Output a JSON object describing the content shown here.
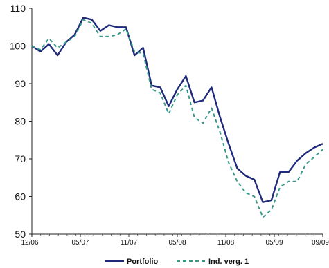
{
  "chart_data": {
    "type": "line",
    "x_tick_labels": [
      "12/06",
      "05/07",
      "11/07",
      "05/08",
      "11/08",
      "05/09",
      "09/09"
    ],
    "ylim": [
      50,
      110
    ],
    "y_ticks": [
      50,
      60,
      70,
      80,
      90,
      100,
      110
    ],
    "grid": false,
    "legend_position": "bottom",
    "series": [
      {
        "name": "Portfolio",
        "color": "#1f2a7a",
        "style": "solid",
        "values": [
          100,
          98.5,
          100.5,
          97.5,
          101,
          103,
          107.5,
          107,
          104,
          105.5,
          105,
          105,
          97.5,
          99.5,
          89.5,
          89,
          84,
          88.5,
          92,
          85,
          85.5,
          89,
          81,
          74,
          67.5,
          65.5,
          64.5,
          58.5,
          59,
          66.5,
          66.5,
          69.5,
          71.5,
          73,
          74
        ]
      },
      {
        "name": "Ind. verg. 1",
        "color": "#3a9a8a",
        "style": "dashed",
        "values": [
          100,
          99,
          102,
          99.5,
          101,
          102.5,
          107,
          106,
          102.5,
          102.5,
          103,
          104.5,
          98.5,
          98,
          88.5,
          87.5,
          82,
          87,
          89.5,
          81,
          79.5,
          83.5,
          77,
          69,
          64,
          61,
          60,
          54.5,
          56.5,
          62.5,
          64,
          64,
          68.5,
          70.5,
          72.5
        ]
      }
    ]
  }
}
